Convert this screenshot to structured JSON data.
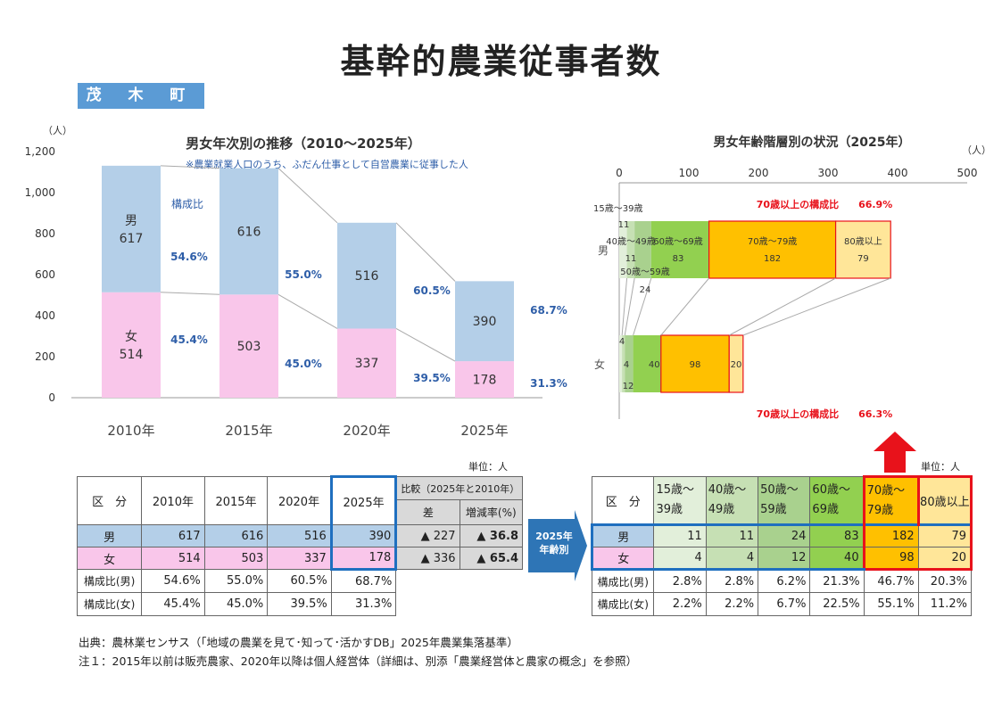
{
  "title": "基幹的農業従事者数",
  "town": "茂 木 町",
  "chart_data": [
    {
      "type": "bar",
      "title": "男女年次別の推移（2010～2025年）",
      "subtitle": "※農業就業人口のうち、ふだん仕事として自営農業に従事した人",
      "ylabel": "（人）",
      "ylim": [
        0,
        1200
      ],
      "yticks": [
        "0",
        "200",
        "400",
        "600",
        "800",
        "1,000",
        "1,200"
      ],
      "yticks_values": [
        0,
        200,
        400,
        600,
        800,
        1000,
        1200
      ],
      "categories": [
        "2010年",
        "2015年",
        "2020年",
        "2025年"
      ],
      "series": [
        {
          "name": "女",
          "values": [
            514,
            503,
            337,
            178
          ],
          "color": "#f9c6ea",
          "labels": [
            "女\n514",
            "503",
            "337",
            "178"
          ]
        },
        {
          "name": "男",
          "values": [
            617,
            616,
            516,
            390
          ],
          "color": "#b4cfe8",
          "labels": [
            "男\n617",
            "616",
            "516",
            "390"
          ]
        }
      ],
      "composition_label": "構成比",
      "male_pct": [
        "54.6%",
        "55.0%",
        "60.5%",
        "68.7%"
      ],
      "female_pct": [
        "45.4%",
        "45.0%",
        "39.5%",
        "31.3%"
      ]
    },
    {
      "type": "bar",
      "orientation": "horizontal-stacked",
      "title": "男女年齢階層別の状況（2025年）",
      "xlabel": "（人）",
      "xlim": [
        0,
        500
      ],
      "xticks": [
        "0",
        "100",
        "200",
        "300",
        "400",
        "500"
      ],
      "xticks_values": [
        0,
        100,
        200,
        300,
        400,
        500
      ],
      "categories": [
        "男",
        "女"
      ],
      "segments": [
        "15歳～39歳",
        "40歳～49歳",
        "50歳～59歳",
        "60歳～69歳",
        "70歳～79歳",
        "80歳以上"
      ],
      "colors": [
        "#e2efda",
        "#c6e0b4",
        "#a9d18e",
        "#92d050",
        "#ffc000",
        "#ffe699"
      ],
      "male": [
        11,
        11,
        24,
        83,
        182,
        79
      ],
      "female": [
        4,
        4,
        12,
        40,
        98,
        20
      ],
      "male_labels": {
        "seg1": "15歳～39歳",
        "seg1v": "11",
        "seg2": "40歳～49歳",
        "seg2v": "11",
        "seg3": "50歳～59歳",
        "seg3v": "24",
        "seg4": "60歳～69歳",
        "seg4v": "83",
        "seg5": "70歳～79歳",
        "seg5v": "182",
        "seg6": "80歳以上",
        "seg6v": "79"
      },
      "female_values": [
        "4",
        "4",
        "12",
        "40",
        "98",
        "20"
      ],
      "male_over70": "70歳以上の構成比　　66.9%",
      "female_over70": "70歳以上の構成比　　66.3%"
    }
  ],
  "table1": {
    "unit": "単位：人",
    "header": [
      "区　分",
      "2010年",
      "2015年",
      "2020年",
      "2025年"
    ],
    "compare_header": "比較（2025年と2010年）",
    "compare_sub": [
      "差",
      "増減率(%)"
    ],
    "rows": [
      {
        "label": "男",
        "values": [
          "617",
          "616",
          "516",
          "390"
        ],
        "diff": "▲ 227",
        "rate": "▲ 36.8"
      },
      {
        "label": "女",
        "values": [
          "514",
          "503",
          "337",
          "178"
        ],
        "diff": "▲ 336",
        "rate": "▲ 65.4"
      },
      {
        "label": "構成比(男)",
        "values": [
          "54.6%",
          "55.0%",
          "60.5%",
          "68.7%"
        ]
      },
      {
        "label": "構成比(女)",
        "values": [
          "45.4%",
          "45.0%",
          "39.5%",
          "31.3%"
        ]
      }
    ]
  },
  "arrow_label": "2025年\n年齢別",
  "table2": {
    "unit": "単位：人",
    "header": [
      "区　分",
      "15歳～\n39歳",
      "40歳～\n49歳",
      "50歳～\n59歳",
      "60歳～\n69歳",
      "70歳～\n79歳",
      "80歳以上"
    ],
    "rows": [
      {
        "label": "男",
        "values": [
          "11",
          "11",
          "24",
          "83",
          "182",
          "79"
        ]
      },
      {
        "label": "女",
        "values": [
          "4",
          "4",
          "12",
          "40",
          "98",
          "20"
        ]
      },
      {
        "label": "構成比(男)",
        "values": [
          "2.8%",
          "2.8%",
          "6.2%",
          "21.3%",
          "46.7%",
          "20.3%"
        ]
      },
      {
        "label": "構成比(女)",
        "values": [
          "2.2%",
          "2.2%",
          "6.7%",
          "22.5%",
          "55.1%",
          "11.2%"
        ]
      }
    ]
  },
  "notes": [
    "出典：農林業センサス（「地域の農業を見て･知って･活かすDB」2025年農業集落基準）",
    "注１：2015年以前は販売農家、2020年以降は個人経営体（詳細は、別添「農業経営体と農家の概念」を参照）"
  ],
  "colors": {
    "accent": "#5b9bd5",
    "male": "#b4cfe8",
    "female": "#f9c6ea",
    "highlight_blue": "#1f6fbf",
    "highlight_red": "#e8121b"
  }
}
